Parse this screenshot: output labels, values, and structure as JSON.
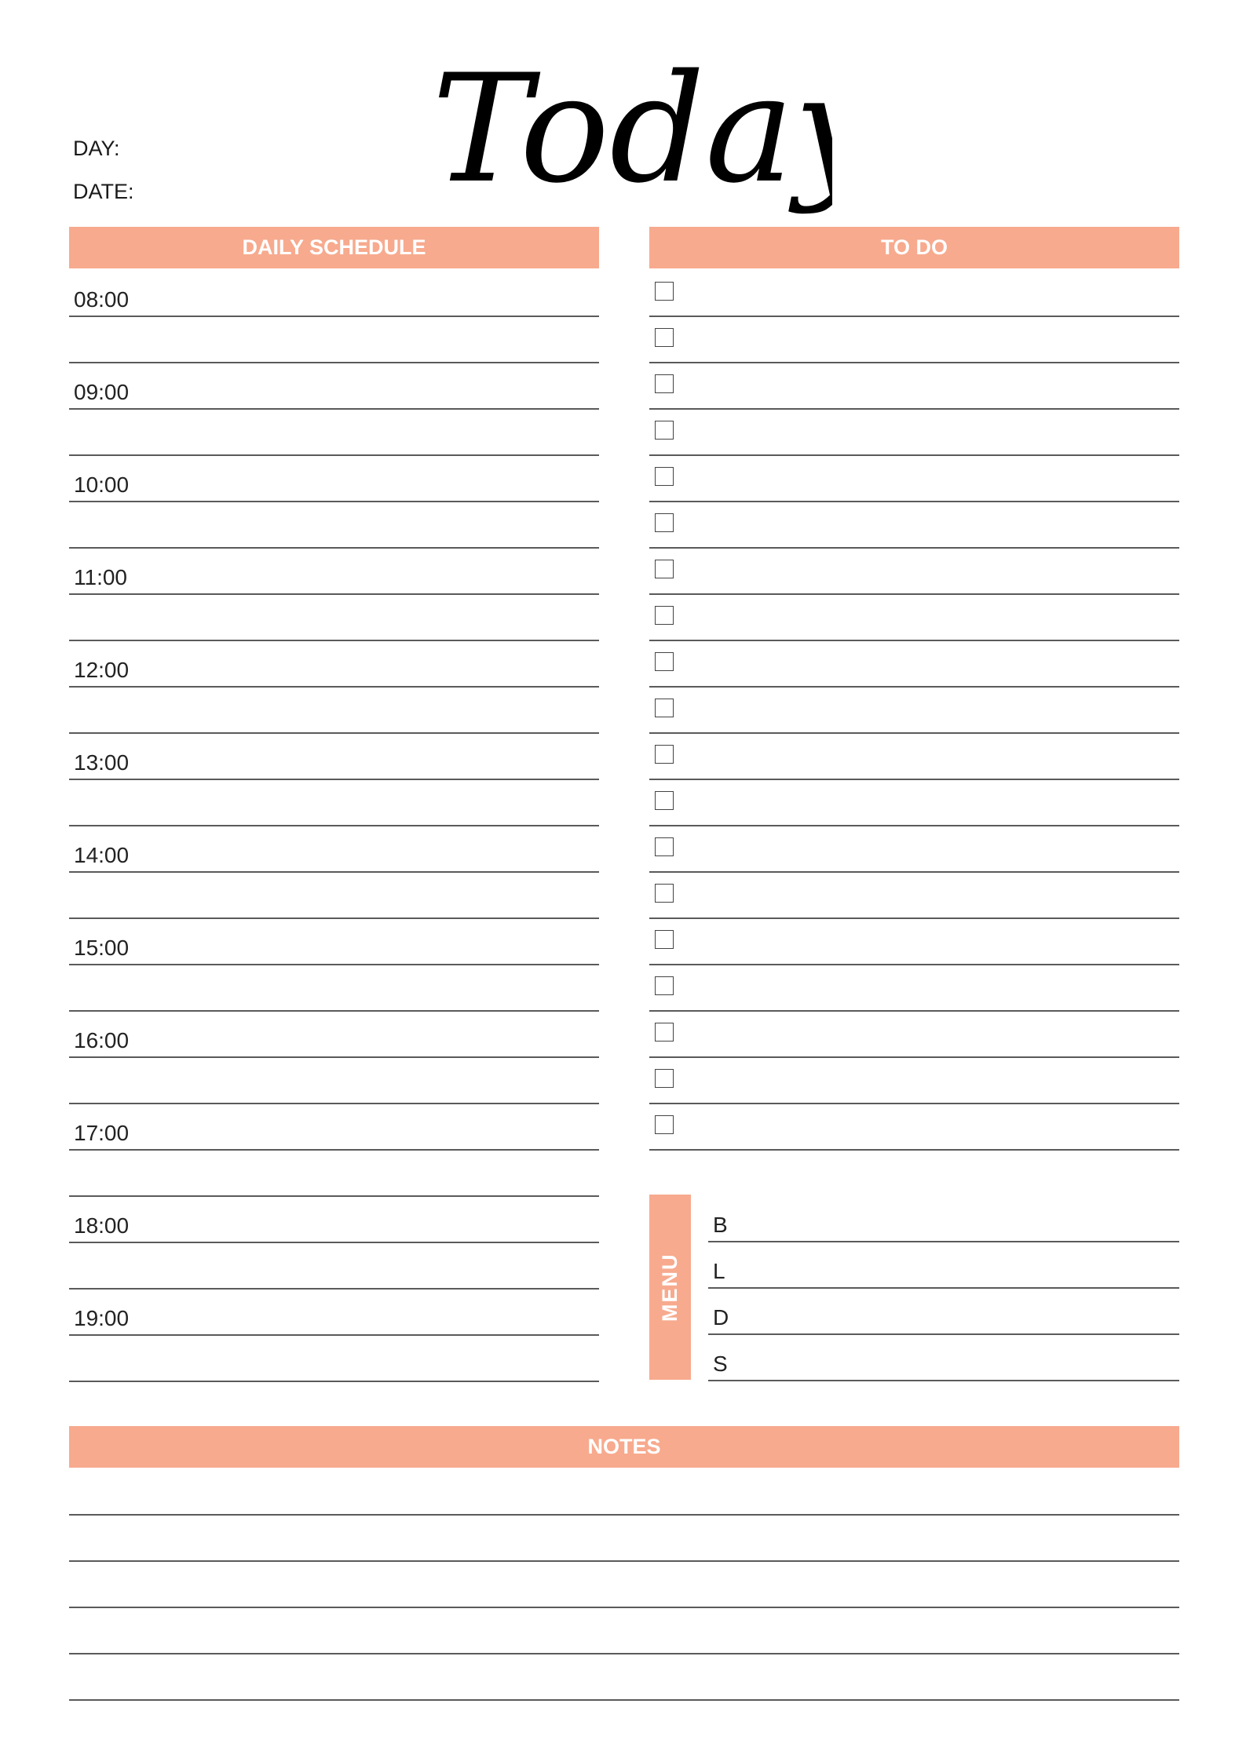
{
  "header": {
    "title": "Today",
    "day_label": "DAY:",
    "date_label": "DATE:"
  },
  "schedule": {
    "heading": "DAILY SCHEDULE",
    "times": [
      "08:00",
      "09:00",
      "10:00",
      "11:00",
      "12:00",
      "13:00",
      "14:00",
      "15:00",
      "16:00",
      "17:00",
      "18:00",
      "19:00"
    ]
  },
  "todo": {
    "heading": "TO DO",
    "item_count": 19
  },
  "menu": {
    "heading": "MENU",
    "meals": [
      "B",
      "L",
      "D",
      "S"
    ]
  },
  "notes": {
    "heading": "NOTES",
    "line_count": 5
  },
  "colors": {
    "accent": "#F7AA8E",
    "rule": "#5a5a5a"
  }
}
